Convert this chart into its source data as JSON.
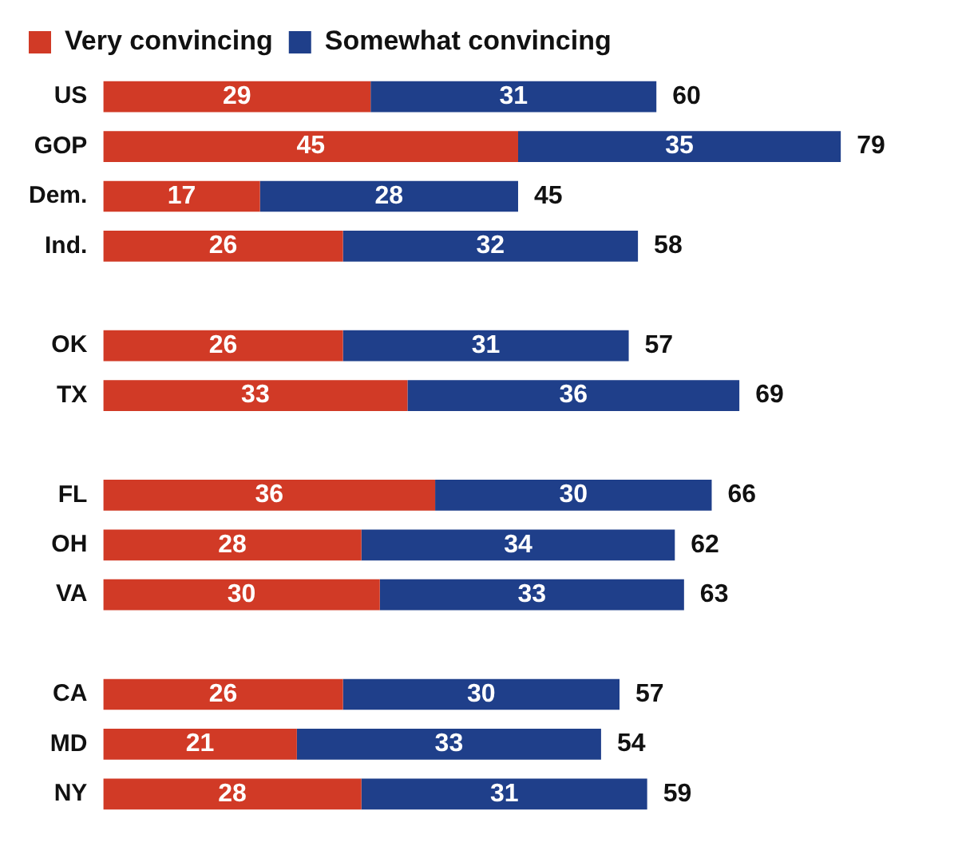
{
  "chart_data": {
    "type": "bar",
    "orientation": "horizontal",
    "stacked": true,
    "data_labels": true,
    "grid": false,
    "legend": "top",
    "tick_labels": "y",
    "categories": [
      "US",
      "GOP",
      "Dem.",
      "Ind.",
      null,
      "OK",
      "TX",
      null,
      "FL",
      "OH",
      "VA",
      null,
      "CA",
      "MD",
      "NY"
    ],
    "series": [
      {
        "name": "Very convincing",
        "color": "#d13a26",
        "values": [
          29,
          45,
          17,
          26,
          null,
          26,
          33,
          null,
          36,
          28,
          30,
          null,
          26,
          21,
          28
        ]
      },
      {
        "name": "Somewhat convincing",
        "color": "#1f3f8a",
        "values": [
          31,
          35,
          28,
          32,
          null,
          31,
          36,
          null,
          30,
          34,
          33,
          null,
          30,
          33,
          31
        ]
      }
    ],
    "totals": [
      "60",
      "79",
      "45",
      "58",
      null,
      "57",
      "69",
      null,
      "66",
      "62",
      "63",
      null,
      "57",
      "54",
      "59"
    ]
  }
}
